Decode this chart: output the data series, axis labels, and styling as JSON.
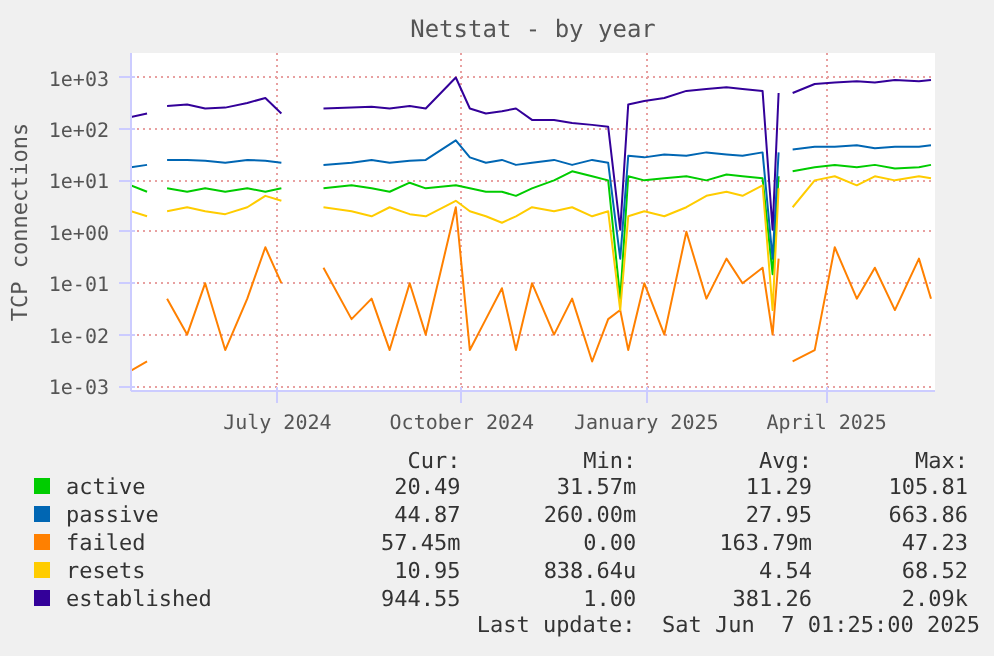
{
  "chart_data": {
    "type": "line",
    "title": "Netstat - by year",
    "ylabel": "TCP connections",
    "log": true,
    "grid": true,
    "legend": "bottom",
    "xlim": [
      "2024-05-04",
      "2025-06-09"
    ],
    "xticks": [
      {
        "value": "2024-07-16",
        "label": "July 2024"
      },
      {
        "value": "2024-10-16",
        "label": "October 2024"
      },
      {
        "value": "2025-01-16",
        "label": "January 2025"
      },
      {
        "value": "2025-04-16",
        "label": "April 2025"
      }
    ],
    "ylim": [
      0.0008,
      3000
    ],
    "yticks": [
      {
        "value": 0.001,
        "label": "1e-03"
      },
      {
        "value": 0.01,
        "label": "1e-02"
      },
      {
        "value": 0.1,
        "label": "1e-01"
      },
      {
        "value": 1,
        "label": "1e+00"
      },
      {
        "value": 10,
        "label": "1e+01"
      },
      {
        "value": 100,
        "label": "1e+02"
      },
      {
        "value": 1000,
        "label": "1e+03"
      }
    ],
    "x": [
      "2024-05-04",
      "2024-05-12",
      "2024-05-17",
      "2024-05-22",
      "2024-06-01",
      "2024-06-10",
      "2024-06-20",
      "2024-07-01",
      "2024-07-10",
      "2024-07-18",
      "2024-07-28",
      "2024-08-08",
      "2024-08-22",
      "2024-09-01",
      "2024-09-10",
      "2024-09-20",
      "2024-09-28",
      "2024-10-13",
      "2024-10-20",
      "2024-10-28",
      "2024-11-05",
      "2024-11-12",
      "2024-11-20",
      "2024-12-01",
      "2024-12-10",
      "2024-12-20",
      "2024-12-28",
      "2025-01-03",
      "2025-01-07",
      "2025-01-15",
      "2025-01-25",
      "2025-02-05",
      "2025-02-15",
      "2025-02-25",
      "2025-03-05",
      "2025-03-15",
      "2025-03-20",
      "2025-03-23",
      "2025-03-26",
      "2025-03-30",
      "2025-04-10",
      "2025-04-20",
      "2025-05-01",
      "2025-05-10",
      "2025-05-20",
      "2025-06-01",
      "2025-06-07"
    ],
    "series": [
      {
        "name": "active",
        "color": "#00cc00",
        "values": [
          8,
          6,
          null,
          7,
          6,
          7,
          6,
          7,
          6,
          7,
          null,
          7,
          8,
          7,
          6,
          9,
          7,
          8,
          7,
          6,
          6,
          5,
          7,
          10,
          15,
          12,
          10,
          0.05,
          12,
          10,
          11,
          12,
          10,
          13,
          12,
          11,
          0.15,
          12,
          null,
          15,
          18,
          20,
          18,
          20,
          17,
          18,
          20
        ]
      },
      {
        "name": "passive",
        "color": "#0066b3",
        "values": [
          18,
          20,
          null,
          25,
          25,
          24,
          22,
          25,
          24,
          22,
          null,
          20,
          22,
          25,
          22,
          24,
          25,
          60,
          28,
          22,
          25,
          20,
          22,
          25,
          20,
          25,
          22,
          0.3,
          30,
          28,
          32,
          30,
          35,
          32,
          30,
          35,
          0.3,
          35,
          null,
          40,
          45,
          45,
          48,
          42,
          45,
          45,
          48
        ]
      },
      {
        "name": "failed",
        "color": "#ff8000",
        "values": [
          0.002,
          0.003,
          null,
          0.05,
          0.01,
          0.1,
          0.005,
          0.05,
          0.5,
          0.1,
          null,
          0.2,
          0.02,
          0.05,
          0.005,
          0.1,
          0.01,
          3,
          0.005,
          0.02,
          0.08,
          0.005,
          0.1,
          0.01,
          0.05,
          0.003,
          0.02,
          0.03,
          0.005,
          0.1,
          0.01,
          1,
          0.05,
          0.3,
          0.1,
          0.2,
          0.01,
          0.3,
          null,
          0.003,
          0.005,
          0.5,
          0.05,
          0.2,
          0.03,
          0.3,
          0.05
        ]
      },
      {
        "name": "resets",
        "color": "#ffcc00",
        "values": [
          2.5,
          2,
          null,
          2.5,
          3,
          2.5,
          2.2,
          3,
          5,
          4,
          null,
          3,
          2.5,
          2,
          3,
          2.2,
          2,
          4,
          2.5,
          2,
          1.5,
          2,
          3,
          2.5,
          3,
          2,
          2.5,
          0.03,
          2,
          2.5,
          2,
          3,
          5,
          6,
          5,
          8,
          0.03,
          7,
          null,
          3,
          10,
          12,
          8,
          12,
          10,
          12,
          11
        ]
      },
      {
        "name": "established",
        "color": "#330099",
        "values": [
          170,
          200,
          null,
          280,
          300,
          250,
          260,
          320,
          400,
          200,
          null,
          250,
          260,
          270,
          250,
          280,
          250,
          1000,
          250,
          200,
          220,
          250,
          150,
          150,
          130,
          120,
          110,
          1.1,
          300,
          350,
          400,
          550,
          600,
          650,
          600,
          550,
          1.1,
          500,
          null,
          500,
          750,
          800,
          850,
          800,
          900,
          850,
          900
        ]
      }
    ],
    "annotations": [
      "Cur:",
      "Min:",
      "Avg:",
      "Max:",
      "20.49",
      "31.57m",
      "11.29",
      "105.81",
      "44.87",
      "260.00m",
      "27.95",
      "663.86",
      "57.45m",
      "0.00",
      "163.79m",
      "47.23",
      "10.95",
      "838.64u",
      "4.54",
      "68.52",
      "944.55",
      "1.00",
      "381.26",
      "2.09k",
      "Last update:  Sat Jun  7 01:25:00 2025"
    ]
  }
}
